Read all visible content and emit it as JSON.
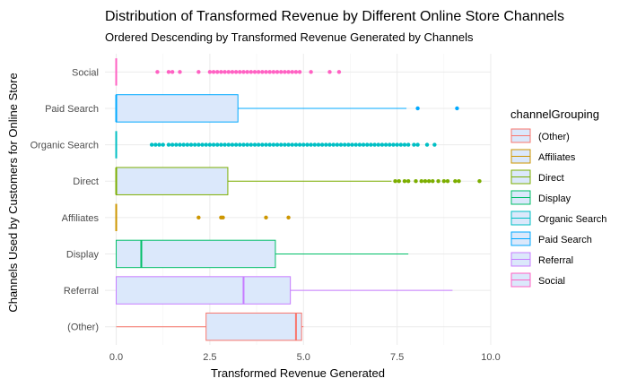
{
  "chart_data": {
    "type": "boxplot",
    "title": "Distribution of Transformed Revenue by Different Online Store Channels",
    "subtitle": "Ordered Descending by Transformed Revenue Generated by Channels",
    "xlabel": "Transformed Revenue Generated",
    "ylabel": "Channels Used by Customers for Online Store",
    "xlim": [
      -0.3,
      10.0
    ],
    "xticks": [
      0.0,
      2.5,
      5.0,
      7.5,
      10.0
    ],
    "xtick_labels": [
      "0.0",
      "2.5",
      "5.0",
      "7.5",
      "10.0"
    ],
    "grid": true,
    "legend": {
      "title": "channelGrouping",
      "position": "right"
    },
    "fill_color": "#dbe8fb",
    "categories": [
      "Social",
      "Paid Search",
      "Organic Search",
      "Direct",
      "Affiliates",
      "Display",
      "Referral",
      "(Other)"
    ],
    "series": [
      {
        "name": "Social",
        "color": "#ff61c3",
        "q1": 0,
        "median": 0,
        "q3": 0,
        "whisker_low": 0,
        "whisker_high": 0,
        "outliers": [
          1.1,
          1.4,
          1.5,
          1.7,
          2.2,
          2.5,
          2.6,
          2.7,
          2.8,
          2.9,
          3.0,
          3.1,
          3.2,
          3.3,
          3.4,
          3.5,
          3.6,
          3.7,
          3.8,
          3.9,
          4.0,
          4.1,
          4.2,
          4.3,
          4.4,
          4.5,
          4.6,
          4.7,
          4.8,
          4.9,
          5.2,
          5.7,
          5.95
        ]
      },
      {
        "name": "Paid Search",
        "color": "#00a9ff",
        "q1": 0,
        "median": 0,
        "q3": 3.25,
        "whisker_low": 0,
        "whisker_high": 7.75,
        "outliers": [
          8.05,
          9.1
        ]
      },
      {
        "name": "Organic Search",
        "color": "#00bfc4",
        "q1": 0,
        "median": 0,
        "q3": 0,
        "whisker_low": 0,
        "whisker_high": 0,
        "outliers": [
          0.95,
          1.05,
          1.15,
          1.25,
          1.4,
          1.5,
          1.6,
          1.7,
          1.8,
          1.9,
          2.0,
          2.1,
          2.2,
          2.3,
          2.4,
          2.5,
          2.6,
          2.7,
          2.8,
          2.9,
          3.0,
          3.1,
          3.2,
          3.3,
          3.4,
          3.5,
          3.6,
          3.7,
          3.8,
          3.9,
          4.0,
          4.1,
          4.2,
          4.3,
          4.4,
          4.5,
          4.6,
          4.7,
          4.8,
          4.9,
          5.0,
          5.1,
          5.2,
          5.3,
          5.4,
          5.5,
          5.6,
          5.7,
          5.8,
          5.9,
          6.0,
          6.1,
          6.2,
          6.3,
          6.4,
          6.5,
          6.6,
          6.7,
          6.8,
          6.9,
          7.0,
          7.1,
          7.2,
          7.3,
          7.4,
          7.5,
          7.6,
          7.7,
          7.8,
          7.95,
          8.05,
          8.3,
          8.5
        ]
      },
      {
        "name": "Direct",
        "color": "#7cae00",
        "q1": 0,
        "median": 0,
        "q3": 2.98,
        "whisker_low": 0,
        "whisker_high": 7.35,
        "outliers": [
          7.45,
          7.55,
          7.7,
          7.8,
          8.0,
          8.15,
          8.25,
          8.35,
          8.45,
          8.6,
          8.75,
          8.85,
          9.05,
          9.15,
          9.7
        ]
      },
      {
        "name": "Affiliates",
        "color": "#cd9600",
        "q1": 0,
        "median": 0,
        "q3": 0,
        "whisker_low": 0,
        "whisker_high": 0,
        "outliers": [
          2.2,
          2.8,
          2.85,
          4.0,
          4.6
        ]
      },
      {
        "name": "Display",
        "color": "#00be67",
        "q1": 0,
        "median": 0.67,
        "q3": 4.25,
        "whisker_low": 0,
        "whisker_high": 7.8,
        "outliers": []
      },
      {
        "name": "Referral",
        "color": "#c77cff",
        "q1": 0,
        "median": 3.4,
        "q3": 4.65,
        "whisker_low": 0,
        "whisker_high": 8.98,
        "outliers": []
      },
      {
        "name": "(Other)",
        "color": "#f8766d",
        "q1": 2.4,
        "median": 4.8,
        "q3": 4.95,
        "whisker_low": 0,
        "whisker_high": 5.0,
        "outliers": []
      }
    ],
    "legend_order": [
      "(Other)",
      "Affiliates",
      "Direct",
      "Display",
      "Organic Search",
      "Paid Search",
      "Referral",
      "Social"
    ]
  }
}
